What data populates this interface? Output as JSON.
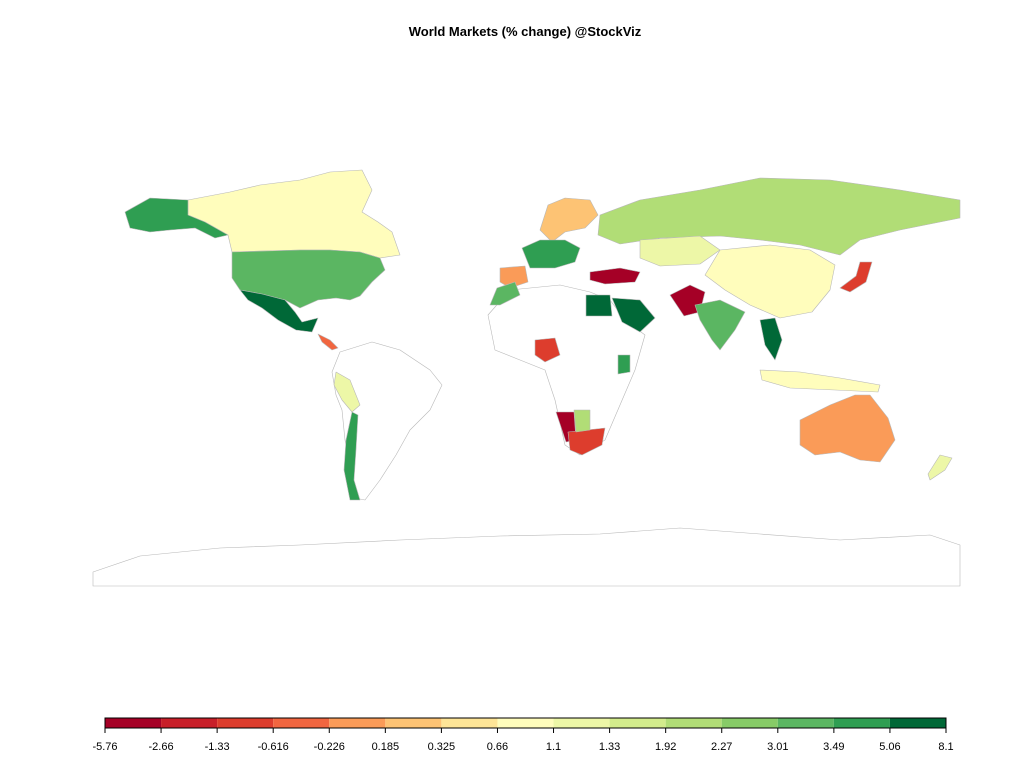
{
  "chart_data": {
    "type": "choropleth",
    "title": "World Markets (% change) @StockViz",
    "legend": {
      "breaks": [
        -5.76,
        -2.66,
        -1.33,
        -0.616,
        -0.226,
        0.185,
        0.325,
        0.66,
        1.1,
        1.33,
        1.92,
        2.27,
        3.01,
        3.49,
        5.06,
        8.1
      ],
      "colors": [
        "#a50026",
        "#c81f29",
        "#dd3d2d",
        "#f16640",
        "#fa9b58",
        "#fdc374",
        "#fee597",
        "#fffdbc",
        "#edf7a7",
        "#d3ec8c",
        "#b1dd76",
        "#87cb67",
        "#5bb662",
        "#2f9e52",
        "#006837"
      ]
    }
  }
}
